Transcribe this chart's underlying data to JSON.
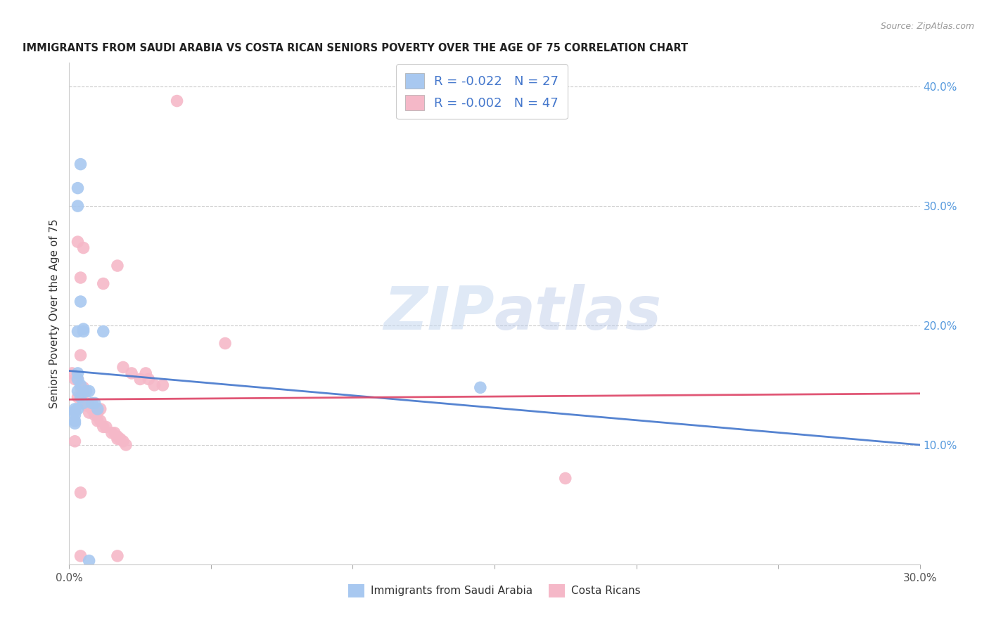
{
  "title": "IMMIGRANTS FROM SAUDI ARABIA VS COSTA RICAN SENIORS POVERTY OVER THE AGE OF 75 CORRELATION CHART",
  "source": "Source: ZipAtlas.com",
  "ylabel": "Seniors Poverty Over the Age of 75",
  "xlim": [
    0,
    0.3
  ],
  "ylim": [
    0,
    0.42
  ],
  "x_tick_positions": [
    0.0,
    0.05,
    0.1,
    0.15,
    0.2,
    0.25,
    0.3
  ],
  "x_tick_labels": [
    "0.0%",
    "",
    "",
    "",
    "",
    "",
    "30.0%"
  ],
  "y_ticks_right": [
    0.1,
    0.2,
    0.3,
    0.4
  ],
  "y_tick_labels_right": [
    "10.0%",
    "20.0%",
    "30.0%",
    "40.0%"
  ],
  "watermark_zip": "ZIP",
  "watermark_atlas": "atlas",
  "legend_label1": "R = -0.022   N = 27",
  "legend_label2": "R = -0.002   N = 47",
  "color_blue": "#a8c8f0",
  "color_pink": "#f5b8c8",
  "color_blue_dark": "#4477cc",
  "color_pink_dark": "#dd4466",
  "blue_trend_x0": 0.0,
  "blue_trend_y0": 0.162,
  "blue_trend_x1": 0.3,
  "blue_trend_y1": 0.1,
  "pink_trend_x0": 0.0,
  "pink_trend_y0": 0.138,
  "pink_trend_x1": 0.3,
  "pink_trend_y1": 0.143,
  "blue_scatter_x": [
    0.002,
    0.003,
    0.004,
    0.003,
    0.004,
    0.005,
    0.002,
    0.002,
    0.002,
    0.002,
    0.003,
    0.003,
    0.003,
    0.004,
    0.005,
    0.006,
    0.007,
    0.008,
    0.009,
    0.01,
    0.003,
    0.003,
    0.004,
    0.005,
    0.012,
    0.145,
    0.007
  ],
  "blue_scatter_y": [
    0.13,
    0.13,
    0.14,
    0.145,
    0.15,
    0.135,
    0.118,
    0.12,
    0.125,
    0.128,
    0.155,
    0.16,
    0.195,
    0.22,
    0.195,
    0.145,
    0.145,
    0.135,
    0.135,
    0.13,
    0.3,
    0.315,
    0.335,
    0.197,
    0.195,
    0.148,
    0.003
  ],
  "pink_scatter_x": [
    0.001,
    0.002,
    0.002,
    0.003,
    0.003,
    0.004,
    0.004,
    0.005,
    0.005,
    0.006,
    0.006,
    0.007,
    0.007,
    0.008,
    0.009,
    0.009,
    0.01,
    0.01,
    0.011,
    0.011,
    0.012,
    0.013,
    0.015,
    0.016,
    0.017,
    0.017,
    0.018,
    0.019,
    0.019,
    0.02,
    0.022,
    0.025,
    0.027,
    0.028,
    0.03,
    0.033,
    0.038,
    0.055,
    0.003,
    0.004,
    0.005,
    0.012,
    0.017,
    0.175,
    0.004,
    0.004,
    0.017
  ],
  "pink_scatter_y": [
    0.16,
    0.155,
    0.103,
    0.155,
    0.14,
    0.148,
    0.06,
    0.148,
    0.145,
    0.135,
    0.133,
    0.133,
    0.127,
    0.13,
    0.128,
    0.125,
    0.127,
    0.12,
    0.13,
    0.12,
    0.115,
    0.115,
    0.11,
    0.11,
    0.107,
    0.105,
    0.105,
    0.103,
    0.165,
    0.1,
    0.16,
    0.155,
    0.16,
    0.155,
    0.15,
    0.15,
    0.388,
    0.185,
    0.27,
    0.175,
    0.265,
    0.235,
    0.25,
    0.072,
    0.24,
    0.007,
    0.007
  ],
  "background_color": "#ffffff",
  "grid_color": "#cccccc"
}
